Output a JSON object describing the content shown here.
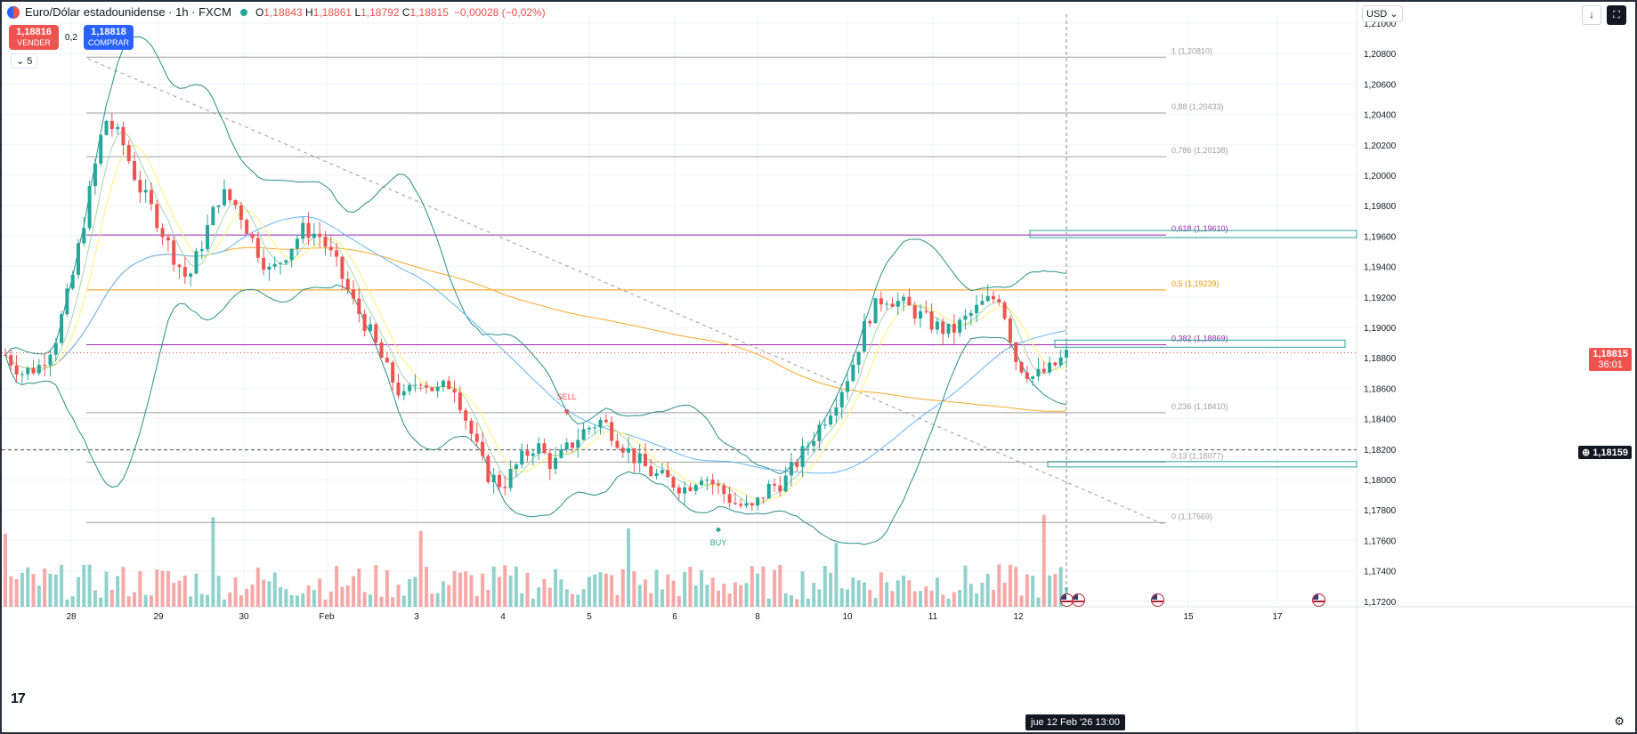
{
  "header": {
    "title": "Euro/Dólar estadounidense · 1h · FXCM",
    "open_label": "O",
    "open": "1,18843",
    "high_label": "H",
    "high": "1,18861",
    "low_label": "L",
    "low": "1,18792",
    "close_label": "C",
    "close": "1,18815",
    "change": "−0,00028 (−0,02%)"
  },
  "trade": {
    "sell_price": "1,18816",
    "sell_label": "VENDER",
    "spread": "0,2",
    "buy_price": "1,18818",
    "buy_label": "COMPRAR"
  },
  "indicator_toggle": "5",
  "currency": "USD",
  "icons": [
    "arrow-down-icon",
    "fullscreen-icon",
    "chevron-down-icon",
    "gear-icon",
    "tradingview-logo",
    "us-flag-icon"
  ],
  "colors": {
    "bull": "#26a69a",
    "bear": "#ef5350",
    "bollinger": "#2a8f86",
    "ema_fast": "#a5d6a7",
    "ema_yellow": "#fff176",
    "ema_blue": "#64b5f6",
    "sma_long": "#ffa726",
    "fib_purple": "#9c27b0",
    "fib_orange": "#ff9800",
    "fib_grey": "#a0a0a0"
  },
  "price_axis": {
    "ticks": [
      "1,21000",
      "1,20800",
      "1,20600",
      "1,20400",
      "1,20200",
      "1,20000",
      "1,19800",
      "1,19600",
      "1,19400",
      "1,19200",
      "1,19000",
      "1,18800",
      "1,18600",
      "1,18400",
      "1,18200",
      "1,18000",
      "1,17800",
      "1,17600",
      "1,17400",
      "1,17200"
    ],
    "current_price": "1,18815",
    "countdown": "36:01",
    "crosshair_price": "1,18159"
  },
  "time_axis": {
    "labels": [
      "28",
      "29",
      "30",
      "Feb",
      "3",
      "4",
      "5",
      "6",
      "8",
      "10",
      "11",
      "12",
      "15",
      "17"
    ],
    "crosshair_label": "jue 12 Feb '26   13:00"
  },
  "fib_levels": [
    {
      "label": "1 (1,20810)",
      "price": 1.2081
    },
    {
      "label": "0,88 (1,20433)",
      "price": 1.20433
    },
    {
      "label": "0,786 (1,20138)",
      "price": 1.20138
    },
    {
      "label": "0,618 (1,19610)",
      "price": 1.1961
    },
    {
      "label": "0,5 (1,19239)",
      "price": 1.19239
    },
    {
      "label": "0,382 (1,18869)",
      "price": 1.18869
    },
    {
      "label": "0,236 (1,18410)",
      "price": 1.1841
    },
    {
      "label": "0,13 (1,18077)",
      "price": 1.18077
    },
    {
      "label": "0 (1,17669)",
      "price": 1.17669
    }
  ],
  "signals": {
    "sell": "SELL",
    "buy": "BUY"
  },
  "chart_data": {
    "type": "candlestick",
    "symbol": "EURUSD",
    "timeframe": "1h",
    "ylim": [
      1.171,
      1.211
    ],
    "closes_approx": [
      1.188,
      1.1868,
      1.1872,
      1.189,
      1.193,
      1.1985,
      1.204,
      1.2025,
      1.1995,
      1.1975,
      1.195,
      1.193,
      1.196,
      1.199,
      1.198,
      1.1955,
      1.1935,
      1.195,
      1.1965,
      1.196,
      1.194,
      1.1915,
      1.1895,
      1.187,
      1.185,
      1.1865,
      1.1855,
      1.1862,
      1.183,
      1.18,
      1.1792,
      1.1808,
      1.182,
      1.1805,
      1.1818,
      1.183,
      1.1836,
      1.1822,
      1.181,
      1.18,
      1.1795,
      1.179,
      1.18,
      1.179,
      1.178,
      1.1775,
      1.179,
      1.1795,
      1.1812,
      1.183,
      1.1848,
      1.187,
      1.1905,
      1.192,
      1.1915,
      1.1908,
      1.19,
      1.1895,
      1.1905,
      1.1915,
      1.192,
      1.1875,
      1.1865,
      1.187,
      1.188
    ],
    "volume_series_color": "#ef5350"
  }
}
